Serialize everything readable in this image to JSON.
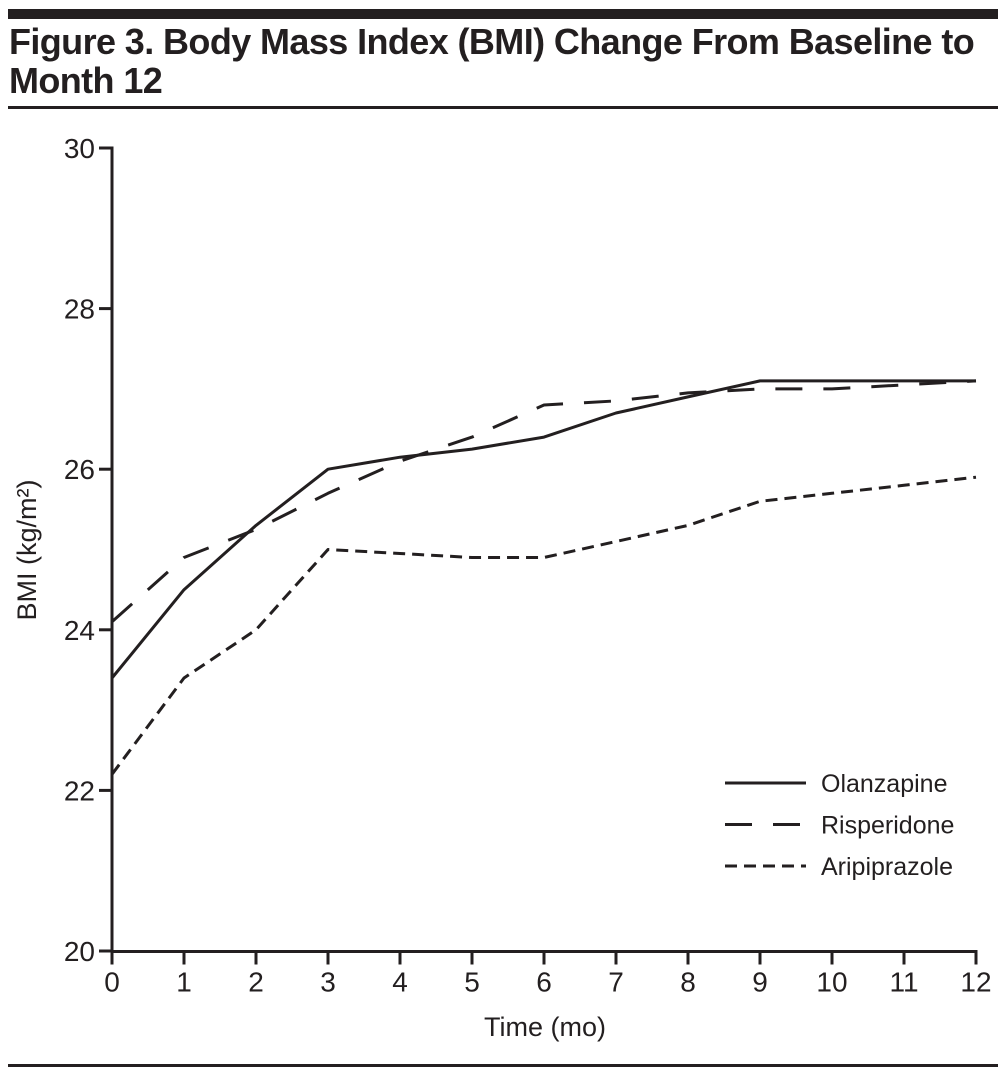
{
  "header": {
    "title_line1": "Figure 3. Body Mass Index (BMI) Change From Baseline to",
    "title_line2": "Month 12"
  },
  "colors": {
    "ink": "#231f20",
    "background": "#ffffff"
  },
  "chart_data": {
    "type": "line",
    "title": "Figure 3. Body Mass Index (BMI) Change From Baseline to Month 12",
    "xlabel": "Time (mo)",
    "ylabel": "BMI (kg/m²)",
    "xlim": [
      0,
      12
    ],
    "ylim": [
      20,
      30
    ],
    "x_ticks": [
      0,
      1,
      2,
      3,
      4,
      5,
      6,
      7,
      8,
      9,
      10,
      11,
      12
    ],
    "y_ticks": [
      20,
      22,
      24,
      26,
      28,
      30
    ],
    "grid": false,
    "legend_position": "inside lower right",
    "x": [
      0,
      1,
      2,
      3,
      4,
      5,
      6,
      7,
      8,
      9,
      10,
      11,
      12
    ],
    "series": [
      {
        "name": "Olanzapine",
        "line_style": "solid",
        "color": "#231f20",
        "values": [
          23.4,
          24.5,
          25.3,
          26.0,
          26.15,
          26.25,
          26.4,
          26.7,
          26.9,
          27.1,
          27.1,
          27.1,
          27.1
        ]
      },
      {
        "name": "Risperidone",
        "line_style": "long-dash",
        "color": "#231f20",
        "values": [
          24.1,
          24.9,
          25.25,
          25.7,
          26.1,
          26.4,
          26.8,
          26.85,
          26.95,
          27.0,
          27.0,
          27.05,
          27.1
        ]
      },
      {
        "name": "Aripiprazole",
        "line_style": "short-dash",
        "color": "#231f20",
        "values": [
          22.2,
          23.4,
          24.0,
          25.0,
          24.95,
          24.9,
          24.9,
          25.1,
          25.3,
          25.6,
          25.7,
          25.8,
          25.9
        ]
      }
    ]
  }
}
